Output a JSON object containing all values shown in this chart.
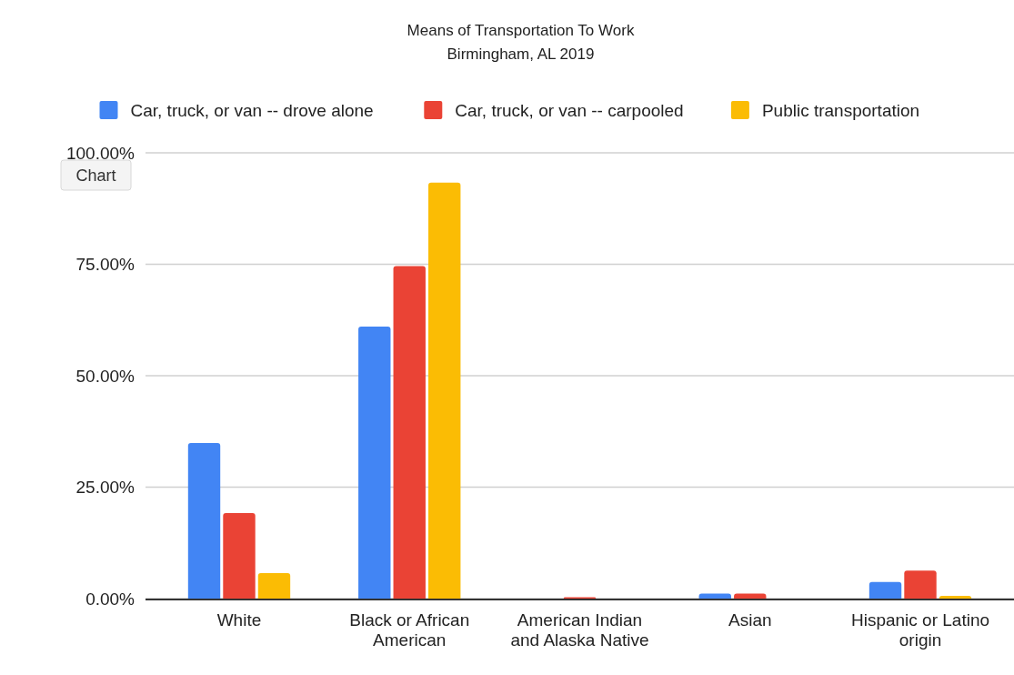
{
  "chart_data": {
    "type": "bar",
    "title": "Means of Transportation To Work",
    "subtitle": "Birmingham, AL 2019",
    "categories": [
      "White",
      "Black or African American",
      "American Indian and Alaska Native",
      "Asian",
      "Hispanic or Latino origin"
    ],
    "series": [
      {
        "name": "Car, truck, or van -- drove alone",
        "color": "#4285f4",
        "values": [
          34.9,
          61.0,
          0,
          1.1,
          3.7
        ]
      },
      {
        "name": "Car, truck, or van -- carpooled",
        "color": "#ea4335",
        "values": [
          19.2,
          74.6,
          0.3,
          1.1,
          6.3
        ]
      },
      {
        "name": "Public transportation",
        "color": "#fbbc04",
        "values": [
          5.7,
          93.3,
          0,
          0,
          0.6
        ]
      }
    ],
    "ylim": [
      0,
      100
    ],
    "yticks": [
      {
        "value": 0,
        "label": "0.00%"
      },
      {
        "value": 25,
        "label": "25.00%"
      },
      {
        "value": 50,
        "label": "50.00%"
      },
      {
        "value": 75,
        "label": "75.00%"
      },
      {
        "value": 100,
        "label": "100.00%"
      }
    ],
    "grid": "y",
    "legend": "top",
    "annotations": [
      "Chart"
    ]
  }
}
